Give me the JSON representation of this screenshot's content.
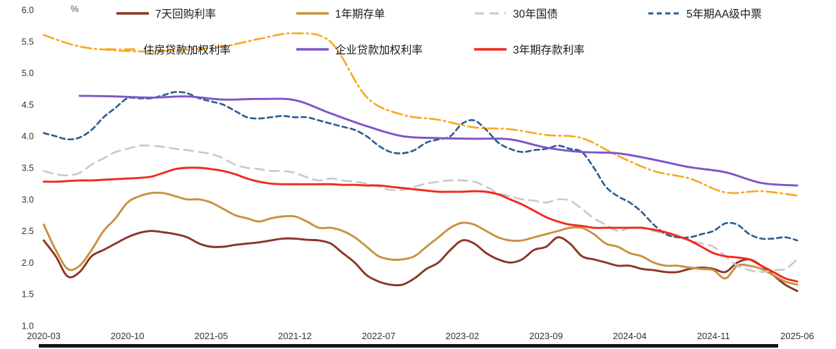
{
  "chart_data": {
    "type": "line",
    "title": "",
    "ylabel": "%",
    "xlabel": "",
    "grid": false,
    "legend_position": "top",
    "legend_rows": [
      [
        0,
        1,
        2,
        3
      ],
      [
        4,
        5,
        6
      ]
    ],
    "ylim": [
      1.0,
      6.0
    ],
    "y_ticks": [
      6.0,
      5.5,
      5.0,
      4.5,
      4.0,
      3.5,
      3.0,
      2.5,
      2.0,
      1.5,
      1.0
    ],
    "x_range": [
      0,
      63
    ],
    "x_unit": "months since 2020-03",
    "x_tick_labels": [
      "2020-03",
      "2020-10",
      "2021-05",
      "2021-12",
      "2022-07",
      "2023-02",
      "2023-09",
      "2024-04",
      "2024-11",
      "2025-06"
    ],
    "x_tick_positions": [
      0,
      7,
      14,
      21,
      28,
      35,
      42,
      49,
      56,
      63
    ],
    "series": [
      {
        "name": "7天回购利率",
        "color": "#8B3626",
        "line_style": "solid",
        "values": [
          2.35,
          2.1,
          1.78,
          1.85,
          2.1,
          2.2,
          2.3,
          2.4,
          2.47,
          2.5,
          2.48,
          2.45,
          2.4,
          2.3,
          2.25,
          2.25,
          2.28,
          2.3,
          2.32,
          2.35,
          2.38,
          2.38,
          2.36,
          2.35,
          2.3,
          2.15,
          2.0,
          1.8,
          1.7,
          1.65,
          1.65,
          1.75,
          1.9,
          2.0,
          2.2,
          2.35,
          2.3,
          2.15,
          2.05,
          2.0,
          2.05,
          2.2,
          2.25,
          2.4,
          2.3,
          2.1,
          2.05,
          2.0,
          1.95,
          1.95,
          1.9,
          1.88,
          1.85,
          1.85,
          1.9,
          1.92,
          1.9,
          1.85,
          2.0,
          2.05,
          1.95,
          1.8,
          1.65,
          1.55
        ]
      },
      {
        "name": "1年期存单",
        "color": "#C8923F",
        "line_style": "solid",
        "values": [
          2.6,
          2.2,
          1.9,
          1.95,
          2.2,
          2.5,
          2.7,
          2.95,
          3.05,
          3.1,
          3.1,
          3.05,
          3.0,
          3.0,
          2.95,
          2.85,
          2.75,
          2.7,
          2.65,
          2.7,
          2.73,
          2.73,
          2.65,
          2.55,
          2.55,
          2.5,
          2.4,
          2.25,
          2.1,
          2.05,
          2.05,
          2.1,
          2.25,
          2.4,
          2.55,
          2.63,
          2.6,
          2.5,
          2.4,
          2.35,
          2.35,
          2.4,
          2.45,
          2.5,
          2.55,
          2.55,
          2.45,
          2.3,
          2.25,
          2.15,
          2.1,
          2.0,
          1.95,
          1.95,
          1.92,
          1.9,
          1.88,
          1.75,
          1.95,
          1.95,
          1.9,
          1.8,
          1.7,
          1.65
        ]
      },
      {
        "name": "30年国债",
        "color": "#C9C9C9",
        "line_style": "long-dash",
        "values": [
          3.45,
          3.4,
          3.38,
          3.42,
          3.55,
          3.65,
          3.75,
          3.8,
          3.85,
          3.85,
          3.83,
          3.8,
          3.78,
          3.75,
          3.72,
          3.65,
          3.55,
          3.5,
          3.48,
          3.45,
          3.45,
          3.42,
          3.35,
          3.3,
          3.33,
          3.3,
          3.28,
          3.25,
          3.2,
          3.15,
          3.15,
          3.2,
          3.25,
          3.28,
          3.3,
          3.3,
          3.28,
          3.2,
          3.1,
          3.05,
          3.0,
          2.98,
          2.95,
          3.0,
          2.98,
          2.85,
          2.7,
          2.6,
          2.5,
          2.55,
          2.55,
          2.5,
          2.45,
          2.4,
          2.35,
          2.3,
          2.25,
          2.1,
          1.95,
          1.88,
          1.85,
          1.88,
          1.9,
          2.05
        ]
      },
      {
        "name": "5年期AA级中票",
        "color": "#2A5D8F",
        "line_style": "dashed",
        "values": [
          4.05,
          4.0,
          3.95,
          3.98,
          4.1,
          4.3,
          4.45,
          4.6,
          4.6,
          4.6,
          4.65,
          4.7,
          4.68,
          4.6,
          4.55,
          4.5,
          4.4,
          4.3,
          4.28,
          4.3,
          4.32,
          4.3,
          4.3,
          4.25,
          4.2,
          4.15,
          4.1,
          4.0,
          3.85,
          3.75,
          3.73,
          3.78,
          3.9,
          3.95,
          4.0,
          4.2,
          4.25,
          4.1,
          3.9,
          3.8,
          3.75,
          3.78,
          3.8,
          3.85,
          3.8,
          3.75,
          3.5,
          3.2,
          3.05,
          2.95,
          2.8,
          2.6,
          2.45,
          2.4,
          2.4,
          2.45,
          2.5,
          2.62,
          2.6,
          2.45,
          2.38,
          2.38,
          2.4,
          2.35
        ]
      },
      {
        "name": "住房贷款加权利率",
        "color": "#F7A823",
        "line_style": "dash-dot",
        "x": [
          0,
          3,
          6,
          9,
          12,
          15,
          18,
          21,
          24,
          27,
          30,
          33,
          36,
          39,
          42,
          45,
          48,
          51,
          54,
          57,
          60,
          63
        ],
        "values": [
          5.6,
          5.42,
          5.36,
          5.34,
          5.37,
          5.42,
          5.54,
          5.63,
          5.49,
          4.62,
          4.34,
          4.26,
          4.14,
          4.11,
          4.02,
          3.97,
          3.69,
          3.45,
          3.33,
          3.11,
          3.13,
          3.06
        ]
      },
      {
        "name": "企业贷款加权利率",
        "color": "#7D55C8",
        "line_style": "solid",
        "x": [
          3,
          6,
          9,
          12,
          15,
          18,
          21,
          24,
          27,
          30,
          33,
          36,
          39,
          42,
          45,
          48,
          51,
          54,
          57,
          60,
          63
        ],
        "values": [
          4.64,
          4.63,
          4.61,
          4.63,
          4.58,
          4.59,
          4.57,
          4.36,
          4.16,
          4.0,
          3.97,
          3.96,
          3.95,
          3.82,
          3.75,
          3.73,
          3.63,
          3.51,
          3.43,
          3.26,
          3.22
        ]
      },
      {
        "name": "3年期存款利率",
        "color": "#F2291C",
        "line_style": "solid",
        "values": [
          3.28,
          3.28,
          3.29,
          3.3,
          3.3,
          3.31,
          3.32,
          3.33,
          3.34,
          3.36,
          3.42,
          3.48,
          3.5,
          3.5,
          3.48,
          3.45,
          3.4,
          3.33,
          3.28,
          3.25,
          3.24,
          3.24,
          3.24,
          3.24,
          3.24,
          3.23,
          3.23,
          3.22,
          3.22,
          3.2,
          3.18,
          3.16,
          3.14,
          3.12,
          3.12,
          3.12,
          3.13,
          3.12,
          3.08,
          3.0,
          2.92,
          2.82,
          2.72,
          2.65,
          2.6,
          2.58,
          2.55,
          2.55,
          2.55,
          2.55,
          2.55,
          2.52,
          2.48,
          2.42,
          2.35,
          2.25,
          2.15,
          2.1,
          2.08,
          2.05,
          1.95,
          1.85,
          1.75,
          1.7
        ]
      }
    ]
  }
}
